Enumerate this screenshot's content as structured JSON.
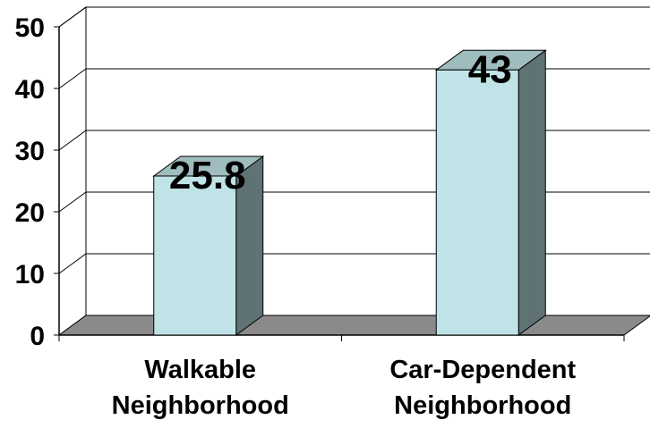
{
  "chart_data": {
    "type": "bar",
    "style": "3d-column",
    "categories": [
      [
        "Walkable",
        "Neighborhood"
      ],
      [
        "Car-Dependent",
        "Neighborhood"
      ]
    ],
    "values": [
      25.8,
      43
    ],
    "data_labels": [
      "25.8",
      "43"
    ],
    "ylim": [
      0,
      50
    ],
    "yticks": [
      "0",
      "10",
      "20",
      "30",
      "40",
      "50"
    ],
    "grid": true,
    "legend": "none"
  },
  "colors": {
    "bar_front": "#bfe3e6",
    "bar_side": "#5f7274",
    "bar_top": "#9fbcbf",
    "floor": "#8a8a8a",
    "gridline": "#000000",
    "walls": "#ffffff"
  }
}
